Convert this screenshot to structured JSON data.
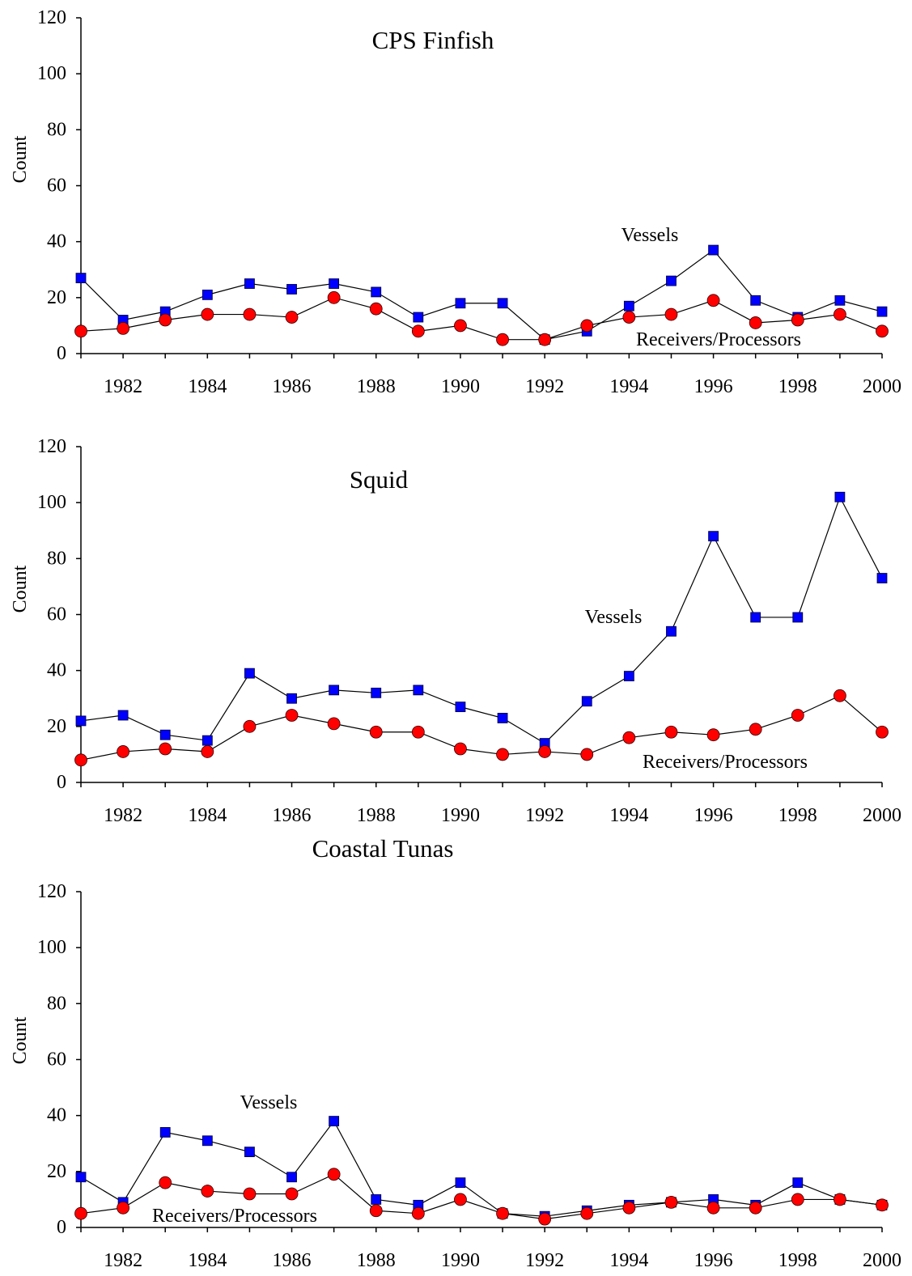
{
  "colors": {
    "vessels_marker": "#0000ff",
    "receivers_marker": "#ff0000",
    "line": "#000000",
    "axis": "#000000",
    "background": "#ffffff"
  },
  "chart_data": [
    {
      "type": "line",
      "title": "CPS Finfish",
      "xlabel": "",
      "ylabel": "Count",
      "xlim": [
        1981,
        2000
      ],
      "ylim": [
        0,
        120
      ],
      "grid": false,
      "legend": "none",
      "x": [
        1981,
        1982,
        1983,
        1984,
        1985,
        1986,
        1987,
        1988,
        1989,
        1990,
        1991,
        1992,
        1993,
        1994,
        1995,
        1996,
        1997,
        1998,
        1999,
        2000
      ],
      "x_ticks": [
        1982,
        1984,
        1986,
        1988,
        1990,
        1992,
        1994,
        1996,
        1998,
        2000
      ],
      "y_ticks": [
        0,
        20,
        40,
        60,
        80,
        100,
        120
      ],
      "series": [
        {
          "name": "Vessels",
          "marker": "square",
          "values": [
            27,
            12,
            15,
            21,
            25,
            23,
            25,
            22,
            13,
            18,
            18,
            5,
            8,
            17,
            26,
            37,
            19,
            13,
            19,
            15
          ]
        },
        {
          "name": "Receivers/Processors",
          "marker": "circle",
          "values": [
            8,
            9,
            12,
            14,
            14,
            13,
            20,
            16,
            8,
            10,
            5,
            5,
            10,
            13,
            14,
            19,
            11,
            12,
            14,
            8
          ]
        }
      ],
      "annotations": [
        {
          "text": "Vessels",
          "series": "Vessels"
        },
        {
          "text": "Receivers/Processors",
          "series": "Receivers/Processors"
        }
      ]
    },
    {
      "type": "line",
      "title": "Squid",
      "xlabel": "",
      "ylabel": "Count",
      "xlim": [
        1981,
        2000
      ],
      "ylim": [
        0,
        120
      ],
      "grid": false,
      "legend": "none",
      "x": [
        1981,
        1982,
        1983,
        1984,
        1985,
        1986,
        1987,
        1988,
        1989,
        1990,
        1991,
        1992,
        1993,
        1994,
        1995,
        1996,
        1997,
        1998,
        1999,
        2000
      ],
      "x_ticks": [
        1982,
        1984,
        1986,
        1988,
        1990,
        1992,
        1994,
        1996,
        1998,
        2000
      ],
      "y_ticks": [
        0,
        20,
        40,
        60,
        80,
        100,
        120
      ],
      "series": [
        {
          "name": "Vessels",
          "marker": "square",
          "values": [
            22,
            24,
            17,
            15,
            39,
            30,
            33,
            32,
            33,
            27,
            23,
            14,
            29,
            38,
            54,
            88,
            59,
            59,
            102,
            73
          ]
        },
        {
          "name": "Receivers/Processors",
          "marker": "circle",
          "values": [
            8,
            11,
            12,
            11,
            20,
            24,
            21,
            18,
            18,
            12,
            10,
            11,
            10,
            16,
            18,
            17,
            19,
            24,
            31,
            18
          ]
        }
      ],
      "annotations": [
        {
          "text": "Vessels",
          "series": "Vessels"
        },
        {
          "text": "Receivers/Processors",
          "series": "Receivers/Processors"
        }
      ]
    },
    {
      "type": "line",
      "title": "Coastal Tunas",
      "xlabel": "",
      "ylabel": "Count",
      "xlim": [
        1981,
        2000
      ],
      "ylim": [
        0,
        120
      ],
      "grid": false,
      "legend": "none",
      "x": [
        1981,
        1982,
        1983,
        1984,
        1985,
        1986,
        1987,
        1988,
        1989,
        1990,
        1991,
        1992,
        1993,
        1994,
        1995,
        1996,
        1997,
        1998,
        1999,
        2000
      ],
      "x_ticks": [
        1982,
        1984,
        1986,
        1988,
        1990,
        1992,
        1994,
        1996,
        1998,
        2000
      ],
      "y_ticks": [
        0,
        20,
        40,
        60,
        80,
        100,
        120
      ],
      "series": [
        {
          "name": "Vessels",
          "marker": "square",
          "values": [
            18,
            9,
            34,
            31,
            27,
            18,
            38,
            10,
            8,
            16,
            5,
            4,
            6,
            8,
            9,
            10,
            8,
            16,
            10,
            8
          ]
        },
        {
          "name": "Receivers/Processors",
          "marker": "circle",
          "values": [
            5,
            7,
            16,
            13,
            12,
            12,
            19,
            6,
            5,
            10,
            5,
            3,
            5,
            7,
            9,
            7,
            7,
            10,
            10,
            8
          ]
        }
      ],
      "annotations": [
        {
          "text": "Vessels",
          "series": "Vessels"
        },
        {
          "text": "Receivers/Processors",
          "series": "Receivers/Processors"
        }
      ]
    }
  ]
}
